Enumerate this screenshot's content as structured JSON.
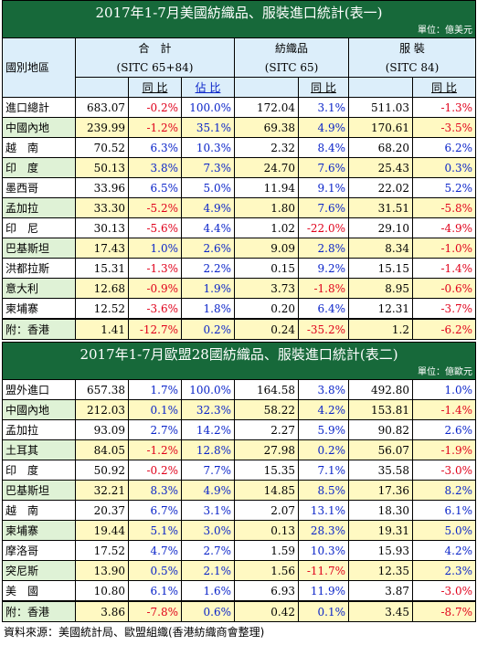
{
  "table1": {
    "title": "2017年1-7月美國紡織品、服裝進口統計(表一)",
    "unit": "單位：億美元",
    "header": {
      "region": "國別地區",
      "total": "合　計",
      "total_code": "(SITC 65+84)",
      "textile": "紡織品",
      "textile_code": "(SITC 65)",
      "apparel": "服 裝",
      "apparel_code": "(SITC 84)",
      "yoy": "同 比",
      "share": "佔 比",
      "yoy2": "同 比",
      "yoy3": "同 比"
    },
    "rows": [
      {
        "name": "進口總計",
        "total": "683.07",
        "t_yoy": "-0.2%",
        "share": "100.0%",
        "tex": "172.04",
        "x_yoy": "3.1%",
        "app": "511.03",
        "a_yoy": "-1.3%"
      },
      {
        "name": "中國內地",
        "total": "239.99",
        "t_yoy": "-1.2%",
        "share": "35.1%",
        "tex": "69.38",
        "x_yoy": "4.9%",
        "app": "170.61",
        "a_yoy": "-3.5%"
      },
      {
        "name": "越　南",
        "total": "70.52",
        "t_yoy": "6.3%",
        "share": "10.3%",
        "tex": "2.32",
        "x_yoy": "8.4%",
        "app": "68.20",
        "a_yoy": "6.2%"
      },
      {
        "name": "印　度",
        "total": "50.13",
        "t_yoy": "3.8%",
        "share": "7.3%",
        "tex": "24.70",
        "x_yoy": "7.6%",
        "app": "25.43",
        "a_yoy": "0.3%"
      },
      {
        "name": "墨西哥",
        "total": "33.96",
        "t_yoy": "6.5%",
        "share": "5.0%",
        "tex": "11.94",
        "x_yoy": "9.1%",
        "app": "22.02",
        "a_yoy": "5.2%"
      },
      {
        "name": "孟加拉",
        "total": "33.30",
        "t_yoy": "-5.2%",
        "share": "4.9%",
        "tex": "1.80",
        "x_yoy": "7.6%",
        "app": "31.51",
        "a_yoy": "-5.8%"
      },
      {
        "name": "印　尼",
        "total": "30.13",
        "t_yoy": "-5.6%",
        "share": "4.4%",
        "tex": "1.02",
        "x_yoy": "-22.0%",
        "app": "29.10",
        "a_yoy": "-4.9%"
      },
      {
        "name": "巴基斯坦",
        "total": "17.43",
        "t_yoy": "1.0%",
        "share": "2.6%",
        "tex": "9.09",
        "x_yoy": "2.8%",
        "app": "8.34",
        "a_yoy": "-1.0%"
      },
      {
        "name": "洪都拉斯",
        "total": "15.31",
        "t_yoy": "-1.3%",
        "share": "2.2%",
        "tex": "0.15",
        "x_yoy": "9.2%",
        "app": "15.15",
        "a_yoy": "-1.4%"
      },
      {
        "name": "意大利",
        "total": "12.68",
        "t_yoy": "-0.9%",
        "share": "1.9%",
        "tex": "3.73",
        "x_yoy": "-1.8%",
        "app": "8.95",
        "a_yoy": "-0.6%"
      },
      {
        "name": "柬埔寨",
        "total": "12.52",
        "t_yoy": "-3.6%",
        "share": "1.8%",
        "tex": "0.20",
        "x_yoy": "6.4%",
        "app": "12.31",
        "a_yoy": "-3.7%"
      },
      {
        "name": "附：香港",
        "total": "1.41",
        "t_yoy": "-12.7%",
        "share": "0.2%",
        "tex": "0.24",
        "x_yoy": "-35.2%",
        "app": "1.2",
        "a_yoy": "-6.2%"
      }
    ]
  },
  "table2": {
    "title": "2017年1-7月歐盟28國紡織品、服裝進口統計(表二)",
    "unit": "單位：億歐元",
    "rows": [
      {
        "name": "盟外進口",
        "total": "657.38",
        "t_yoy": "1.7%",
        "share": "100.0%",
        "tex": "164.58",
        "x_yoy": "3.8%",
        "app": "492.80",
        "a_yoy": "1.0%"
      },
      {
        "name": "中國內地",
        "total": "212.03",
        "t_yoy": "0.1%",
        "share": "32.3%",
        "tex": "58.22",
        "x_yoy": "4.2%",
        "app": "153.81",
        "a_yoy": "-1.4%"
      },
      {
        "name": "孟加拉",
        "total": "93.09",
        "t_yoy": "2.7%",
        "share": "14.2%",
        "tex": "2.27",
        "x_yoy": "5.9%",
        "app": "90.82",
        "a_yoy": "2.6%"
      },
      {
        "name": "土耳其",
        "total": "84.05",
        "t_yoy": "-1.2%",
        "share": "12.8%",
        "tex": "27.98",
        "x_yoy": "0.2%",
        "app": "56.07",
        "a_yoy": "-1.9%"
      },
      {
        "name": "印　度",
        "total": "50.92",
        "t_yoy": "-0.2%",
        "share": "7.7%",
        "tex": "15.35",
        "x_yoy": "7.1%",
        "app": "35.58",
        "a_yoy": "-3.0%"
      },
      {
        "name": "巴基斯坦",
        "total": "32.21",
        "t_yoy": "8.3%",
        "share": "4.9%",
        "tex": "14.85",
        "x_yoy": "8.5%",
        "app": "17.36",
        "a_yoy": "8.2%"
      },
      {
        "name": "越　南",
        "total": "20.37",
        "t_yoy": "6.7%",
        "share": "3.1%",
        "tex": "2.07",
        "x_yoy": "13.1%",
        "app": "18.30",
        "a_yoy": "6.1%"
      },
      {
        "name": "柬埔寨",
        "total": "19.44",
        "t_yoy": "5.1%",
        "share": "3.0%",
        "tex": "0.13",
        "x_yoy": "28.3%",
        "app": "19.31",
        "a_yoy": "5.0%"
      },
      {
        "name": "摩洛哥",
        "total": "17.52",
        "t_yoy": "4.7%",
        "share": "2.7%",
        "tex": "1.59",
        "x_yoy": "10.3%",
        "app": "15.93",
        "a_yoy": "4.2%"
      },
      {
        "name": "突尼斯",
        "total": "13.90",
        "t_yoy": "0.5%",
        "share": "2.1%",
        "tex": "1.56",
        "x_yoy": "-11.7%",
        "app": "12.35",
        "a_yoy": "2.3%"
      },
      {
        "name": "美　國",
        "total": "10.80",
        "t_yoy": "6.1%",
        "share": "1.6%",
        "tex": "6.93",
        "x_yoy": "11.9%",
        "app": "3.87",
        "a_yoy": "-3.0%"
      },
      {
        "name": "附：香港",
        "total": "3.86",
        "t_yoy": "-7.8%",
        "share": "0.6%",
        "tex": "0.42",
        "x_yoy": "0.1%",
        "app": "3.45",
        "a_yoy": "-8.7%"
      }
    ]
  },
  "footer": "資料來源：美國統計局、歐盟組織(香港紡織商會整理)",
  "colors": {
    "header_green": "#17693a",
    "header_blue": "#dceefa",
    "row_yellow": "#fff9c2",
    "row_green": "#dff2d6",
    "negative": "#e0001a",
    "positive": "#0a24c9"
  }
}
